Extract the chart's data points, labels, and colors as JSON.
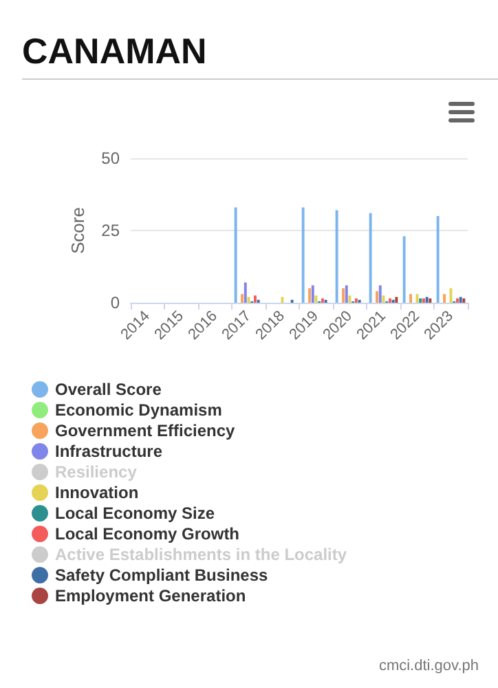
{
  "chart_data": {
    "type": "bar",
    "title": "CANAMAN",
    "ylabel": "Score",
    "categories": [
      "2014",
      "2015",
      "2016",
      "2017",
      "2018",
      "2019",
      "2020",
      "2021",
      "2022",
      "2023"
    ],
    "ylim": [
      0,
      50
    ],
    "yticks": [
      0,
      25,
      50
    ],
    "grid": "y",
    "legend": "bottom left",
    "annotations": [
      "cmci.dti.gov.ph"
    ],
    "series": [
      {
        "name": "Overall Score",
        "color": "#7cb5ec",
        "values": [
          null,
          null,
          null,
          33,
          null,
          33,
          32,
          31,
          23,
          30
        ]
      },
      {
        "name": "Economic Dynamism",
        "color": "#90ed7d",
        "values": [
          null,
          null,
          null,
          null,
          null,
          null,
          null,
          null,
          null,
          null
        ]
      },
      {
        "name": "Government Efficiency",
        "color": "#f7a35c",
        "values": [
          null,
          null,
          null,
          3,
          null,
          5,
          5,
          4,
          3,
          3
        ]
      },
      {
        "name": "Infrastructure",
        "color": "#8085e9",
        "values": [
          null,
          null,
          null,
          7,
          null,
          6,
          6,
          6,
          null,
          null
        ]
      },
      {
        "name": "Resiliency",
        "values": [
          null,
          null,
          null,
          null,
          null,
          null,
          null,
          null,
          null,
          null
        ]
      },
      {
        "name": "Innovation",
        "color": "#e4d354",
        "values": [
          null,
          null,
          null,
          2,
          2,
          2.5,
          2.5,
          2.5,
          3,
          5
        ]
      },
      {
        "name": "Local Economy Size",
        "color": "#2b908f",
        "values": [
          null,
          null,
          null,
          0.5,
          null,
          0.5,
          0.5,
          0.5,
          1.5,
          0.5
        ]
      },
      {
        "name": "Local Economy Growth",
        "color": "#f45b5b",
        "values": [
          null,
          null,
          null,
          2.5,
          null,
          1.5,
          1.5,
          1.5,
          1.5,
          1.5
        ]
      },
      {
        "name": "Active Establishments in the Locality",
        "values": [
          null,
          null,
          null,
          null,
          null,
          null,
          null,
          null,
          null,
          null
        ]
      },
      {
        "name": "Safety Compliant Business",
        "color": "#3f6ea7",
        "values": [
          null,
          null,
          null,
          1,
          1,
          1,
          1,
          1,
          2,
          2
        ]
      },
      {
        "name": "Employment Generation",
        "color": "#a94442",
        "values": [
          null,
          null,
          null,
          null,
          null,
          null,
          null,
          2,
          1.5,
          1.5
        ]
      }
    ]
  }
}
